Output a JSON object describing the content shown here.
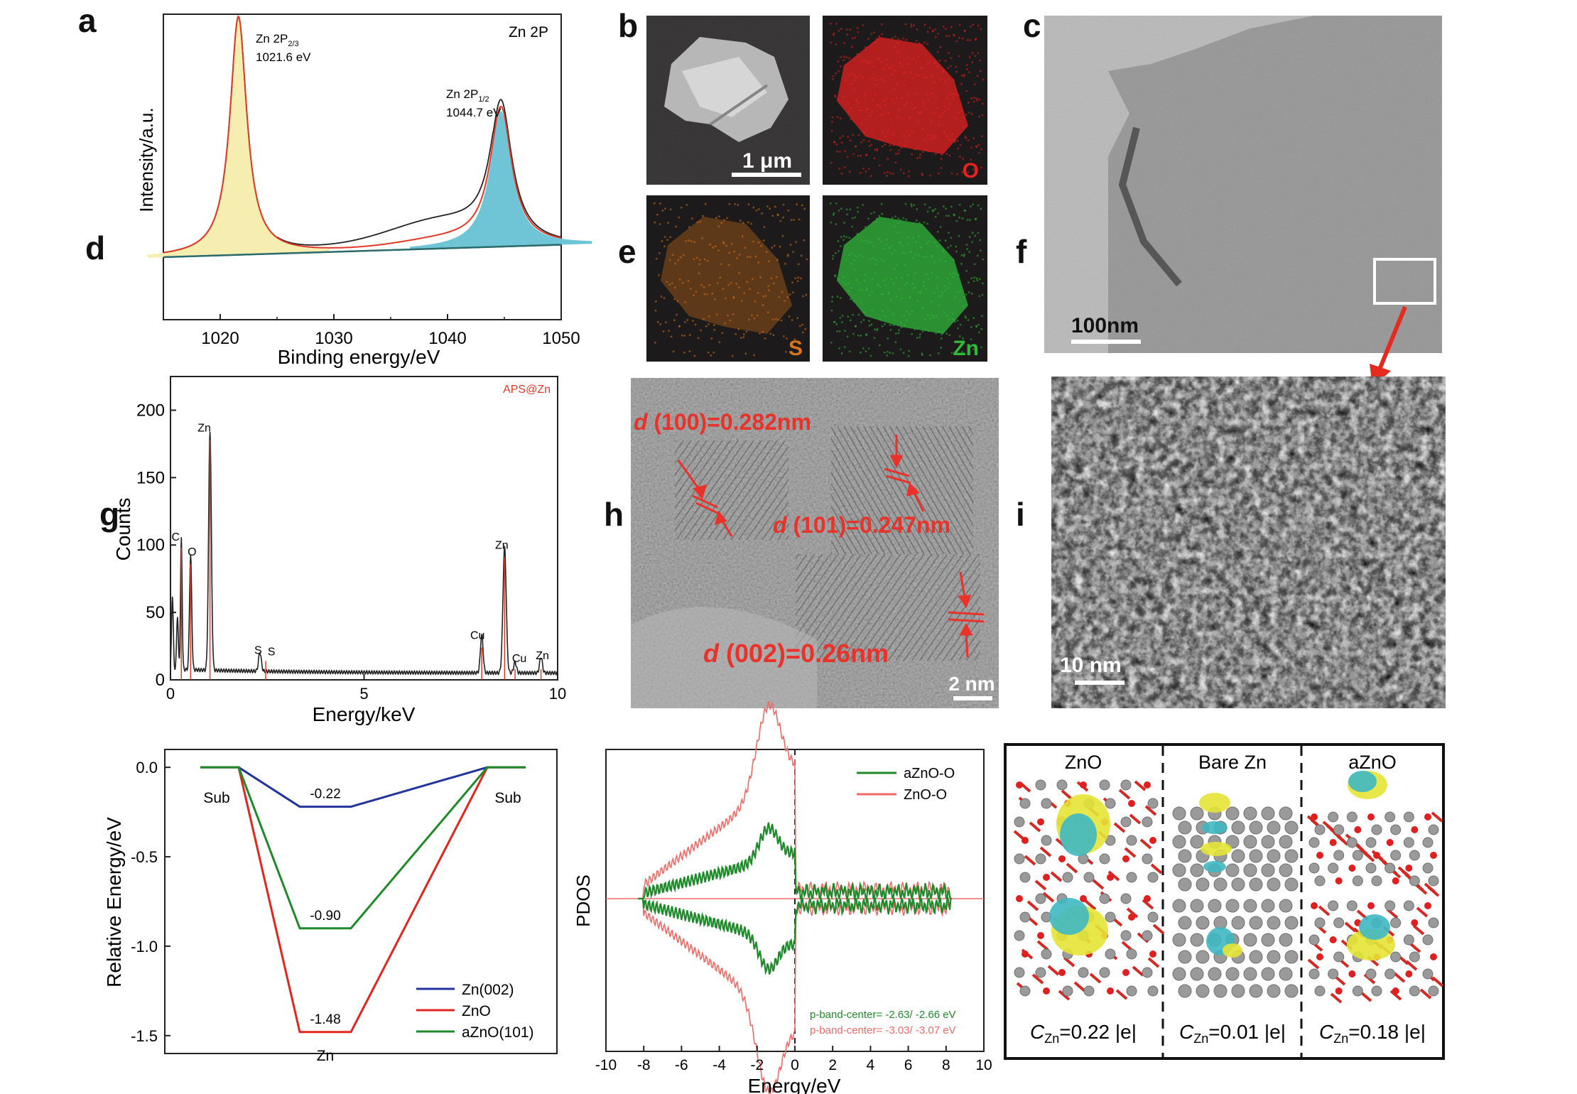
{
  "panel_letters": [
    "a",
    "b",
    "c",
    "d",
    "e",
    "f",
    "g",
    "h",
    "i"
  ],
  "chart_data": [
    {
      "panel": "a",
      "type": "line",
      "title": "Zn 2P",
      "xlabel": "Binding energy/eV",
      "ylabel": "Intensity/a.u.",
      "xlim": [
        1015,
        1050
      ],
      "xticks": [
        "1020",
        "1030",
        "1040",
        "1050"
      ],
      "peaks": [
        {
          "name": "Zn 2P",
          "sub": "2/3",
          "energy": 1021.6,
          "energy_label": "1021.6 eV",
          "height": 1.0,
          "fill": "#f6eeb0"
        },
        {
          "name": "Zn 2P",
          "sub": "1/2",
          "energy": 1044.7,
          "energy_label": "1044.7 eV",
          "height": 0.57,
          "fill": "#6fc4d6"
        }
      ],
      "colors": {
        "raw": "#222222",
        "fit": "#e03a28",
        "background": "#2a6a6a"
      }
    },
    {
      "panel": "d",
      "type": "line",
      "xlabel": "Energy/keV",
      "ylabel": "Counts",
      "xlim": [
        0,
        10
      ],
      "ylim": [
        0,
        225
      ],
      "xticks": [
        "0",
        "5",
        "10"
      ],
      "yticks": [
        "0",
        "50",
        "100",
        "150",
        "200"
      ],
      "legend": "APS@Zn",
      "peak_labels": [
        {
          "label": "C",
          "x": 0.28,
          "y": 100
        },
        {
          "label": "O",
          "x": 0.52,
          "y": 88
        },
        {
          "label": "Zn",
          "x": 1.02,
          "y": 180
        },
        {
          "label": "S",
          "x": 2.3,
          "y": 16
        },
        {
          "label": "S",
          "x": 2.46,
          "y": 16
        },
        {
          "label": "Cu",
          "x": 8.04,
          "y": 26
        },
        {
          "label": "Zn",
          "x": 8.63,
          "y": 93
        },
        {
          "label": "Cu",
          "x": 8.9,
          "y": 10
        },
        {
          "label": "Zn",
          "x": 9.57,
          "y": 10
        }
      ],
      "colors": {
        "spectrum": "#222222",
        "marker": "#e03a28"
      }
    },
    {
      "panel": "g",
      "type": "line",
      "ylabel": "Relative Energy/eV",
      "ylim": [
        -1.6,
        0.1
      ],
      "yticks": [
        "0.0",
        "-0.5",
        "-1.0",
        "-1.5"
      ],
      "state_labels": [
        "Sub",
        "Zn",
        "Sub"
      ],
      "series": [
        {
          "name": "Zn(002)",
          "values": [
            0,
            -0.22,
            0
          ],
          "label": "-0.22",
          "color": "#23359a"
        },
        {
          "name": "ZnO",
          "values": [
            0,
            -1.48,
            0
          ],
          "label": "-1.48",
          "color": "#e0261e"
        },
        {
          "name": "aZnO(101)",
          "values": [
            0,
            -0.9,
            0
          ],
          "label": "-0.90",
          "color": "#1f8a2a"
        }
      ]
    },
    {
      "panel": "h",
      "type": "line",
      "xlabel": "Energy/eV",
      "ylabel": "PDOS",
      "xlim": [
        -10,
        10
      ],
      "xticks": [
        "-10",
        "-8",
        "-6",
        "-4",
        "-2",
        "0",
        "2",
        "4",
        "6",
        "8",
        "10"
      ],
      "series": [
        {
          "name": "aZnO-O",
          "color": "#1e8a2a",
          "band_center": "p-band-center= -2.63/ -2.66 eV"
        },
        {
          "name": "ZnO-O",
          "color": "#ef6a66",
          "band_center": "p-band-center= -3.03/ -3.07 eV"
        }
      ]
    }
  ],
  "panel_b": {
    "maps": [
      {
        "label": "",
        "color": "#dddddd"
      },
      {
        "label": "O",
        "color": "#e52222"
      },
      {
        "label": "S",
        "color": "#d8741a"
      },
      {
        "label": "Zn",
        "color": "#2fb83a"
      }
    ],
    "scalebar": "1 μm"
  },
  "panel_c": {
    "scalebar": "100nm"
  },
  "panel_e": {
    "annotations": [
      {
        "d": "d",
        "text": " (100)=0.282nm"
      },
      {
        "d": "d",
        "text": " (101)=0.247nm"
      },
      {
        "d": "d",
        "text": " (002)=0.26nm"
      }
    ],
    "scalebar": "2 nm",
    "accent": "#e8322a"
  },
  "panel_f": {
    "scalebar": "10 nm"
  },
  "panel_i": {
    "columns": [
      {
        "title": "ZnO",
        "c_label": "C",
        "c_sub": "Zn",
        "c_value": "=0.22 |e|"
      },
      {
        "title": "Bare Zn",
        "c_label": "C",
        "c_sub": "Zn",
        "c_value": "=0.01 |e|"
      },
      {
        "title": "aZnO",
        "c_label": "C",
        "c_sub": "Zn",
        "c_value": "=0.18 |e|"
      }
    ]
  }
}
